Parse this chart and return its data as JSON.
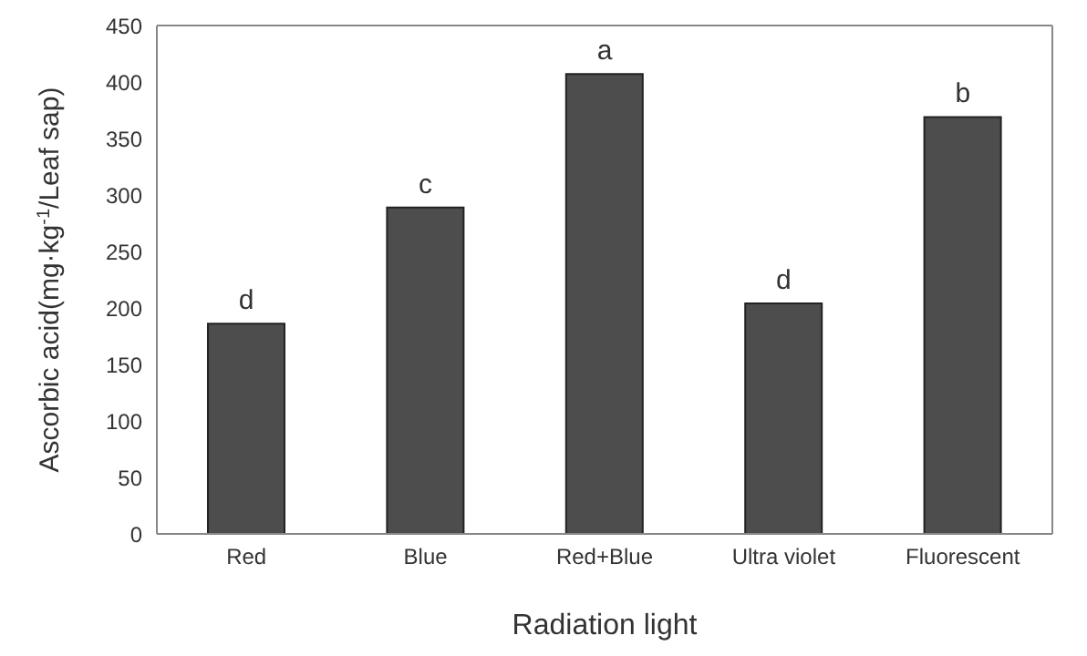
{
  "chart_data": {
    "type": "bar",
    "xlabel": "Radiation light",
    "ylabel": "Ascorbic acid(mg·kg$^{-1}$/Leaf sap)",
    "categories": [
      "Red",
      "Blue",
      "Red+Blue",
      "Ultra violet",
      "Fluorescent"
    ],
    "values": [
      186,
      289,
      407,
      204,
      369
    ],
    "color": "#4d4d4d",
    "ylim": [
      0,
      450
    ],
    "yticks": [
      0,
      50,
      100,
      150,
      200,
      250,
      300,
      350,
      400,
      450
    ],
    "grid": false,
    "annotations": [
      {
        "text": "d",
        "x": "Red",
        "y": 186
      },
      {
        "text": "c",
        "x": "Blue",
        "y": 289
      },
      {
        "text": "a",
        "x": "Red+Blue",
        "y": 407
      },
      {
        "text": "d",
        "x": "Ultra violet",
        "y": 204
      },
      {
        "text": "b",
        "x": "Fluorescent",
        "y": 369
      }
    ]
  }
}
